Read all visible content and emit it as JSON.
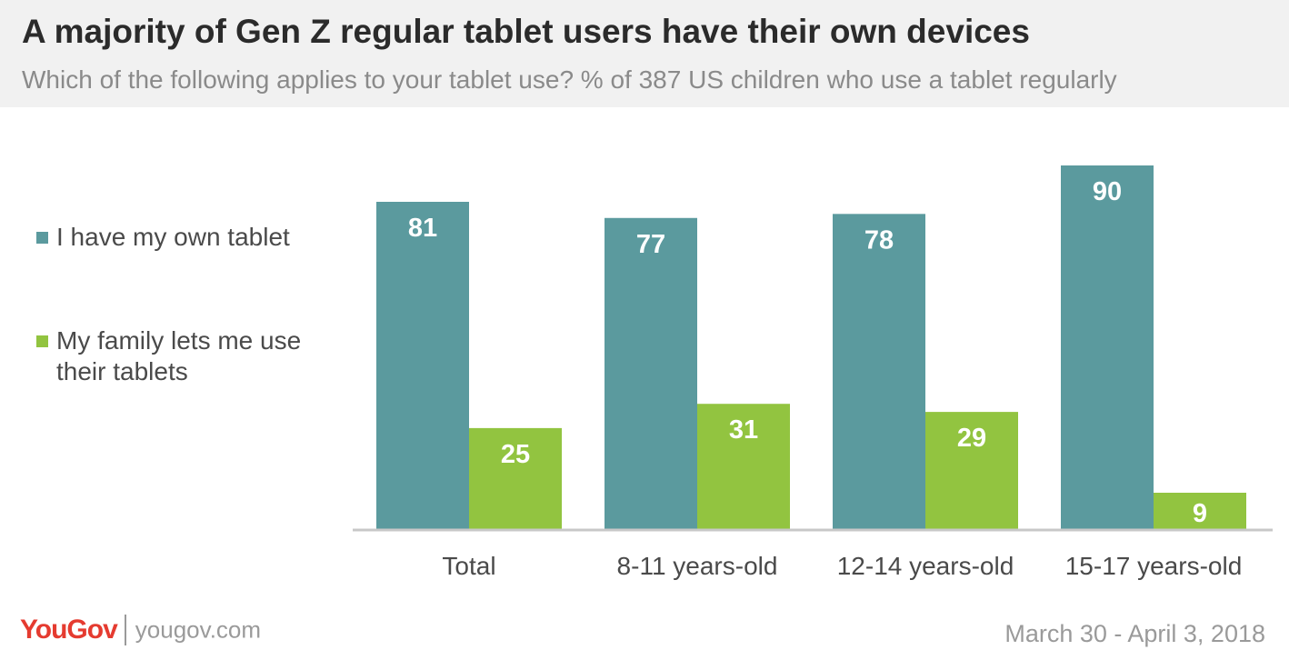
{
  "chart_data": {
    "type": "bar",
    "title": "A majority of Gen Z regular tablet users have their own devices",
    "subtitle": "Which of the following applies to your tablet use? % of 387 US children who use a tablet regularly",
    "categories": [
      "Total",
      "8-11 years-old",
      "12-14 years-old",
      "15-17 years-old"
    ],
    "series": [
      {
        "name": "I have my own tablet",
        "values": [
          81,
          77,
          78,
          90
        ],
        "color": "#5b9a9e"
      },
      {
        "name": "My family lets me use their tablets",
        "values": [
          25,
          31,
          29,
          9
        ],
        "color": "#92c440"
      }
    ],
    "ylim": [
      0,
      90
    ],
    "xlabel": "",
    "ylabel": "",
    "grid": false,
    "legend": "left"
  },
  "footer": {
    "brand": "YouGov",
    "url": "yougov.com",
    "date": "March 30 - April 3, 2018"
  }
}
